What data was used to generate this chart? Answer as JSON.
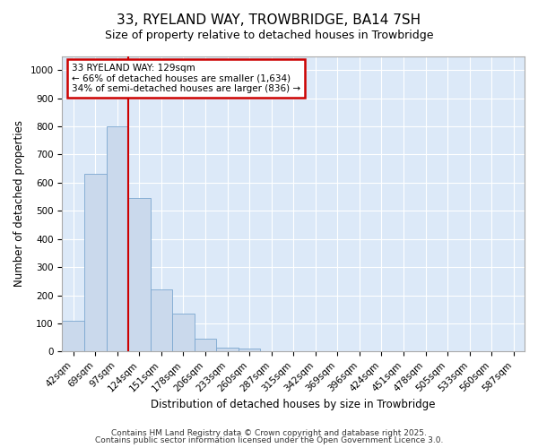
{
  "title_line1": "33, RYELAND WAY, TROWBRIDGE, BA14 7SH",
  "title_line2": "Size of property relative to detached houses in Trowbridge",
  "xlabel": "Distribution of detached houses by size in Trowbridge",
  "ylabel": "Number of detached properties",
  "bar_labels": [
    "42sqm",
    "69sqm",
    "97sqm",
    "124sqm",
    "151sqm",
    "178sqm",
    "206sqm",
    "233sqm",
    "260sqm",
    "287sqm",
    "315sqm",
    "342sqm",
    "369sqm",
    "396sqm",
    "424sqm",
    "451sqm",
    "478sqm",
    "505sqm",
    "533sqm",
    "560sqm",
    "587sqm"
  ],
  "bar_values": [
    108,
    630,
    800,
    545,
    222,
    135,
    45,
    15,
    10,
    0,
    0,
    0,
    0,
    0,
    0,
    0,
    0,
    0,
    0,
    0,
    0
  ],
  "bar_color": "#cad9ec",
  "bar_edge_color": "#7ba7d0",
  "background_color": "#dce9f8",
  "grid_color": "#ffffff",
  "vline_x_index": 3,
  "annotation_line1": "33 RYELAND WAY: 129sqm",
  "annotation_line2": "← 66% of detached houses are smaller (1,634)",
  "annotation_line3": "34% of semi-detached houses are larger (836) →",
  "annotation_box_color": "#ffffff",
  "annotation_box_edge": "#cc0000",
  "vline_color": "#cc0000",
  "ylim": [
    0,
    1050
  ],
  "yticks": [
    0,
    100,
    200,
    300,
    400,
    500,
    600,
    700,
    800,
    900,
    1000
  ],
  "footer_line1": "Contains HM Land Registry data © Crown copyright and database right 2025.",
  "footer_line2": "Contains public sector information licensed under the Open Government Licence 3.0.",
  "fig_bg": "#ffffff",
  "title1_fontsize": 11,
  "title2_fontsize": 9,
  "tick_fontsize": 7.5,
  "ylabel_fontsize": 8.5,
  "xlabel_fontsize": 8.5,
  "footer_fontsize": 6.5
}
